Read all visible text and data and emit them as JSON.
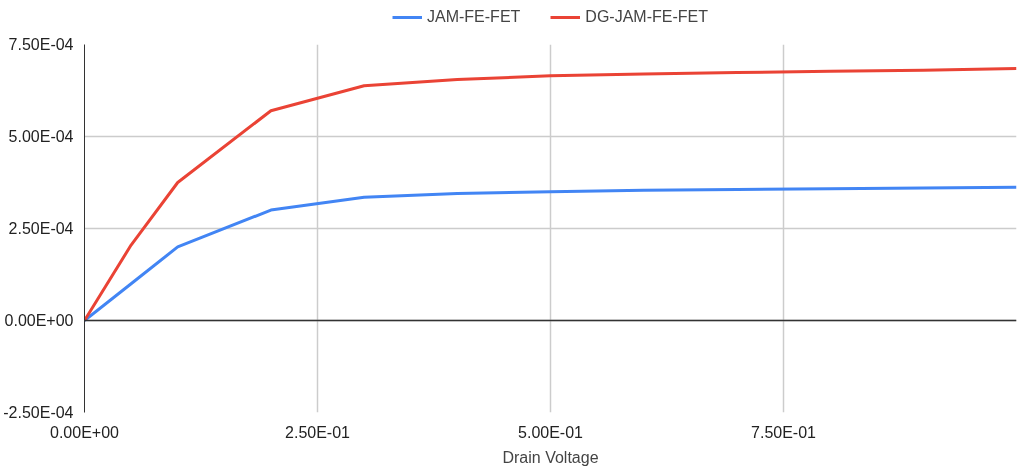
{
  "chart_data": {
    "type": "line",
    "xlabel": "Drain Voltage",
    "x": [
      0,
      0.05,
      0.1,
      0.2,
      0.3,
      0.4,
      0.5,
      0.6,
      0.7,
      0.8,
      0.9,
      1.0
    ],
    "series": [
      {
        "name": "JAM-FE-FET",
        "color": "#4285f4",
        "values": [
          0,
          0.0001,
          0.0002,
          0.0003,
          0.000335,
          0.000345,
          0.00035,
          0.000354,
          0.000356,
          0.000358,
          0.00036,
          0.000362
        ]
      },
      {
        "name": "DG-JAM-FE-FET",
        "color": "#ea4335",
        "values": [
          0,
          0.000205,
          0.000375,
          0.00057,
          0.000638,
          0.000655,
          0.000665,
          0.00067,
          0.000674,
          0.000677,
          0.00068,
          0.000685
        ]
      }
    ],
    "xlim": [
      0,
      1.0
    ],
    "ylim": [
      -0.00025,
      0.00075
    ],
    "xticks": [
      {
        "value": 0,
        "label": "0.00E+00"
      },
      {
        "value": 0.25,
        "label": "2.50E-01"
      },
      {
        "value": 0.5,
        "label": "5.00E-01"
      },
      {
        "value": 0.75,
        "label": "7.50E-01"
      }
    ],
    "yticks": [
      {
        "value": -0.00025,
        "label": "-2.50E-04"
      },
      {
        "value": 0,
        "label": "0.00E+00"
      },
      {
        "value": 0.00025,
        "label": "2.50E-04"
      },
      {
        "value": 0.0005,
        "label": "5.00E-04"
      },
      {
        "value": 0.00075,
        "label": "7.50E-04"
      }
    ],
    "ref_lines": [
      {
        "axis": "y",
        "value": 0,
        "color": "#333333"
      }
    ],
    "grid": true,
    "legend": "top",
    "marker": "none",
    "line_style": "solid"
  }
}
